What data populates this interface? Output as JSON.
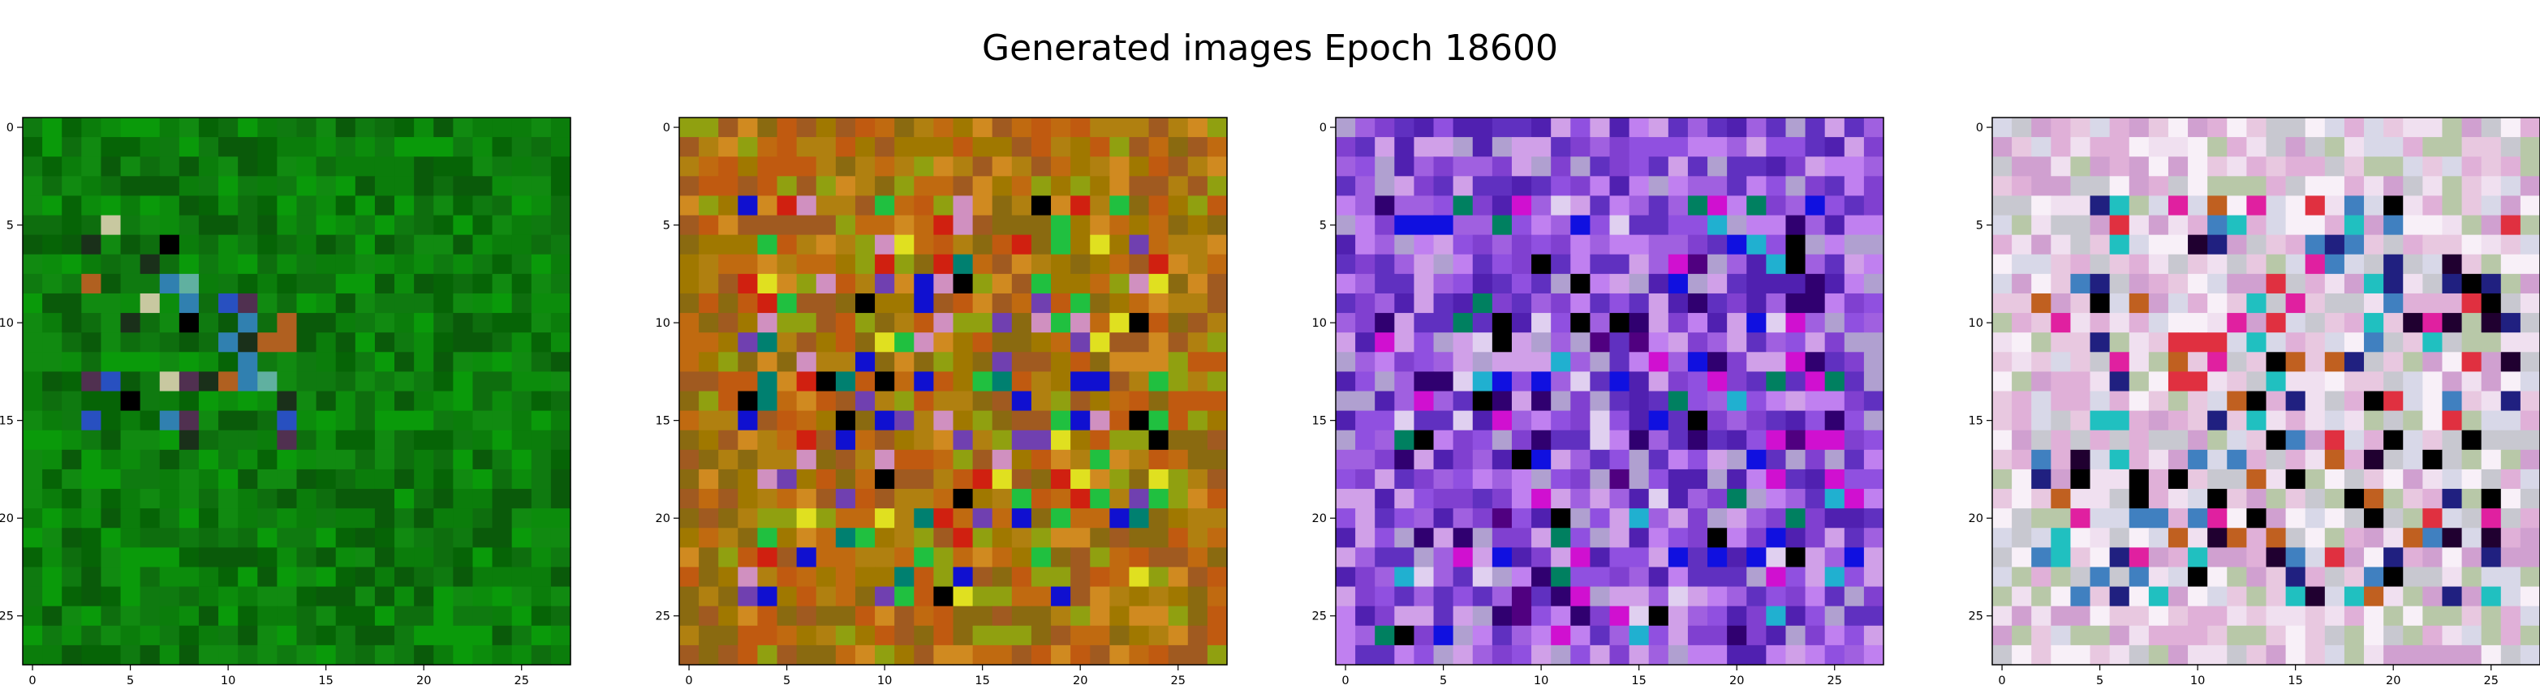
{
  "title": "Generated images Epoch 18600",
  "chart_data": [
    {
      "type": "heatmap",
      "grid_size": [
        28,
        28
      ],
      "xticks": [
        0,
        5,
        10,
        15,
        20,
        25
      ],
      "yticks": [
        0,
        5,
        10,
        15,
        20,
        25
      ],
      "xlim": [
        -0.5,
        27.5
      ],
      "ylim": [
        27.5,
        -0.5
      ],
      "palette": [
        "#0a5a0a",
        "#0e6e0e",
        "#0b7d0b",
        "#118a11",
        "#0a9a0a",
        "#066406",
        "#0f7a10",
        "#0c8c0c"
      ],
      "accents": [
        "#c8c8a0",
        "#b06020",
        "#2850c0",
        "#60b0a0",
        "#000000",
        "#1a301a",
        "#3080b0",
        "#503050"
      ],
      "accent_region": [
        5,
        16,
        3,
        13
      ]
    },
    {
      "type": "heatmap",
      "grid_size": [
        28,
        28
      ],
      "xticks": [
        0,
        5,
        10,
        15,
        20,
        25
      ],
      "yticks": [
        0,
        5,
        10,
        15,
        20,
        25
      ],
      "xlim": [
        -0.5,
        27.5
      ],
      "ylim": [
        27.5,
        -0.5
      ],
      "palette": [
        "#b08010",
        "#c06a10",
        "#a07800",
        "#d08a20",
        "#8a6a10",
        "#c05a10",
        "#90a010",
        "#a05a20"
      ],
      "accents": [
        "#000000",
        "#1010d0",
        "#e0e020",
        "#d02010",
        "#008070",
        "#7040b0",
        "#20c040",
        "#d090c0"
      ],
      "accent_region": [
        4,
        24,
        3,
        24
      ]
    },
    {
      "type": "heatmap",
      "grid_size": [
        28,
        28
      ],
      "xticks": [
        0,
        5,
        10,
        15,
        20,
        25
      ],
      "yticks": [
        0,
        5,
        10,
        15,
        20,
        25
      ],
      "xlim": [
        -0.5,
        27.5
      ],
      "ylim": [
        27.5,
        -0.5
      ],
      "palette": [
        "#8040d0",
        "#a060e0",
        "#5020b0",
        "#c080f0",
        "#6030c0",
        "#d0a0e8",
        "#9050e0",
        "#b0a0d0"
      ],
      "accents": [
        "#000000",
        "#1010e0",
        "#300070",
        "#20b0d0",
        "#d010d0",
        "#008060",
        "#e0d0f0",
        "#500080"
      ],
      "accent_region": [
        4,
        26,
        2,
        26
      ]
    },
    {
      "type": "heatmap",
      "grid_size": [
        28,
        28
      ],
      "xticks": [
        0,
        5,
        10,
        15,
        20,
        25
      ],
      "yticks": [
        0,
        5,
        10,
        15,
        20,
        25
      ],
      "xlim": [
        -0.5,
        27.5
      ],
      "ylim": [
        27.5,
        -0.5
      ],
      "palette": [
        "#e8c8e0",
        "#f0e0f0",
        "#d0a0d0",
        "#c8c8d0",
        "#f8f0f8",
        "#e0b0d8",
        "#b8c8a8",
        "#d8d8e8"
      ],
      "accents": [
        "#e020a0",
        "#000000",
        "#202080",
        "#20c0c0",
        "#e03040",
        "#200030",
        "#4080c0",
        "#c06020"
      ],
      "accent_region": [
        4,
        24,
        2,
        26
      ]
    }
  ]
}
